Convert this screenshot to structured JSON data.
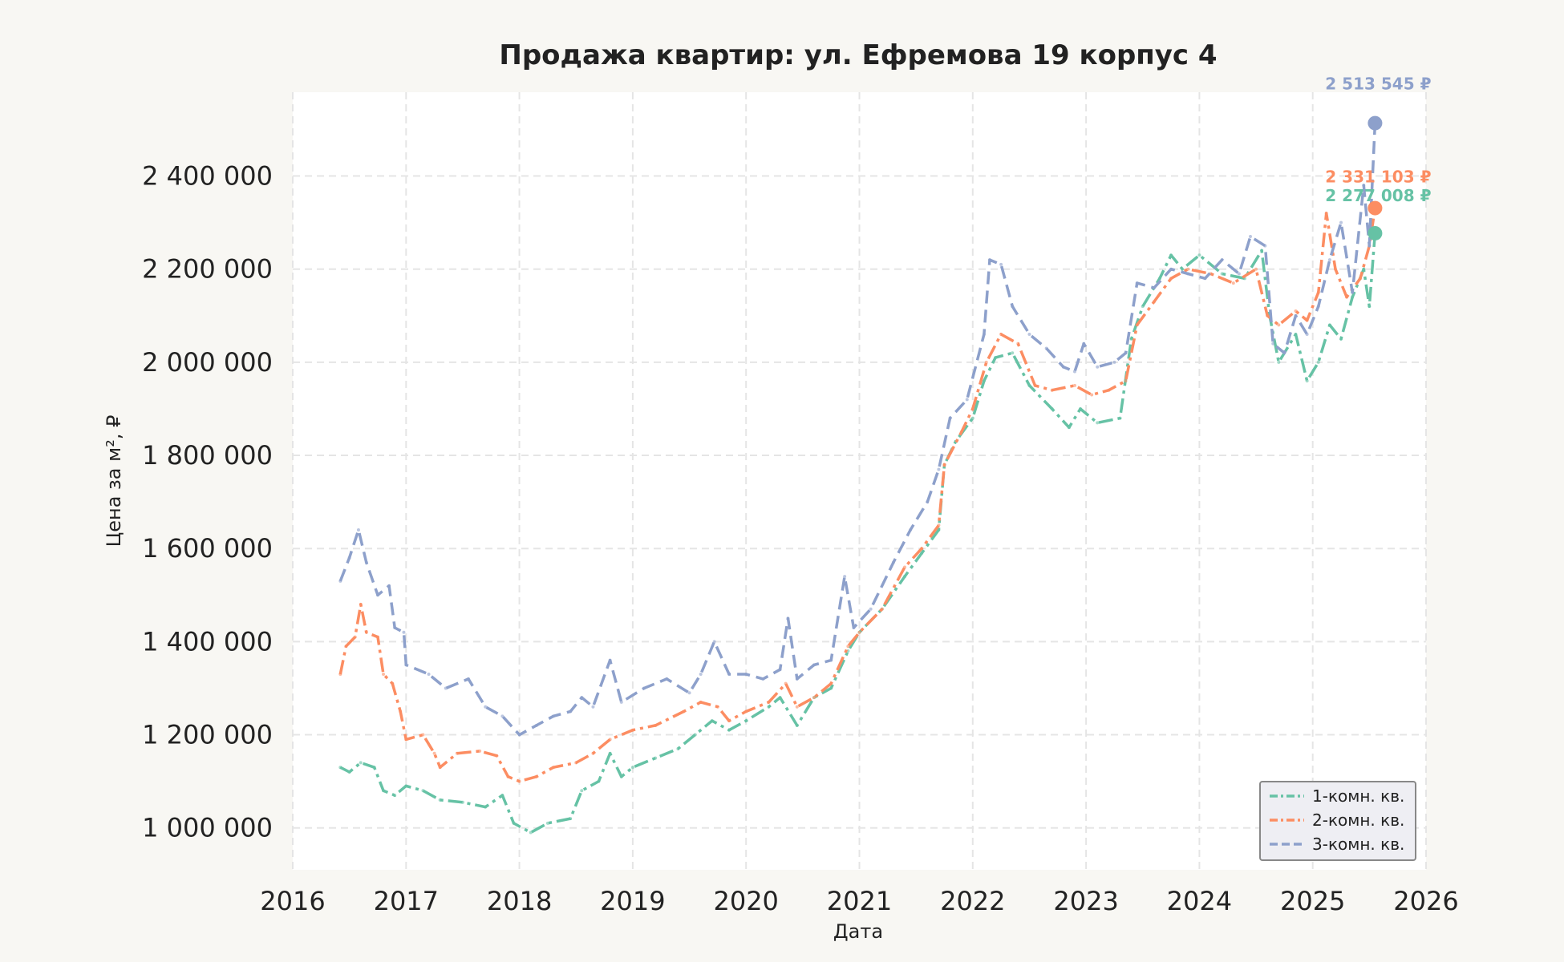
{
  "chart_data": {
    "type": "line",
    "title": "Продажа квартир: ул. Ефремова 19 корпус 4",
    "xlabel": "Дата",
    "ylabel": "Цена за м², ₽",
    "xlim": [
      2016,
      2026
    ],
    "ylim": [
      910000,
      2580000
    ],
    "x_ticks": [
      2016,
      2017,
      2018,
      2019,
      2020,
      2021,
      2022,
      2023,
      2024,
      2025,
      2026
    ],
    "x_tick_labels": [
      "2016",
      "2017",
      "2018",
      "2019",
      "2020",
      "2021",
      "2022",
      "2023",
      "2024",
      "2025",
      "2026"
    ],
    "y_ticks": [
      1000000,
      1200000,
      1400000,
      1600000,
      1800000,
      2000000,
      2200000,
      2400000
    ],
    "y_tick_labels": [
      "1 000 000",
      "1 200 000",
      "1 400 000",
      "1 600 000",
      "1 800 000",
      "2 000 000",
      "2 200 000",
      "2 400 000"
    ],
    "grid": true,
    "legend_position": "bottom-right",
    "series": [
      {
        "name": "1-комн. кв.",
        "color": "#66c2a5",
        "dash": "dashdot",
        "last_label": "2 277 008 ₽",
        "last_point": [
          2025.55,
          2277008
        ],
        "points": [
          [
            2016.42,
            1130000
          ],
          [
            2016.5,
            1120000
          ],
          [
            2016.6,
            1140000
          ],
          [
            2016.72,
            1130000
          ],
          [
            2016.8,
            1080000
          ],
          [
            2016.9,
            1070000
          ],
          [
            2017.0,
            1090000
          ],
          [
            2017.15,
            1080000
          ],
          [
            2017.3,
            1060000
          ],
          [
            2017.5,
            1055000
          ],
          [
            2017.7,
            1045000
          ],
          [
            2017.85,
            1070000
          ],
          [
            2017.95,
            1010000
          ],
          [
            2018.1,
            990000
          ],
          [
            2018.25,
            1010000
          ],
          [
            2018.45,
            1020000
          ],
          [
            2018.55,
            1080000
          ],
          [
            2018.7,
            1100000
          ],
          [
            2018.8,
            1160000
          ],
          [
            2018.9,
            1110000
          ],
          [
            2019.0,
            1130000
          ],
          [
            2019.2,
            1150000
          ],
          [
            2019.4,
            1170000
          ],
          [
            2019.55,
            1200000
          ],
          [
            2019.7,
            1230000
          ],
          [
            2019.85,
            1210000
          ],
          [
            2020.0,
            1230000
          ],
          [
            2020.2,
            1260000
          ],
          [
            2020.3,
            1280000
          ],
          [
            2020.45,
            1220000
          ],
          [
            2020.6,
            1280000
          ],
          [
            2020.75,
            1300000
          ],
          [
            2020.9,
            1380000
          ],
          [
            2021.0,
            1420000
          ],
          [
            2021.2,
            1470000
          ],
          [
            2021.4,
            1540000
          ],
          [
            2021.55,
            1590000
          ],
          [
            2021.7,
            1640000
          ],
          [
            2021.75,
            1780000
          ],
          [
            2021.85,
            1830000
          ],
          [
            2022.0,
            1880000
          ],
          [
            2022.1,
            1960000
          ],
          [
            2022.2,
            2010000
          ],
          [
            2022.35,
            2020000
          ],
          [
            2022.5,
            1950000
          ],
          [
            2022.7,
            1900000
          ],
          [
            2022.85,
            1860000
          ],
          [
            2022.95,
            1900000
          ],
          [
            2023.1,
            1870000
          ],
          [
            2023.3,
            1880000
          ],
          [
            2023.4,
            2050000
          ],
          [
            2023.5,
            2120000
          ],
          [
            2023.65,
            2180000
          ],
          [
            2023.75,
            2230000
          ],
          [
            2023.85,
            2200000
          ],
          [
            2024.0,
            2230000
          ],
          [
            2024.2,
            2190000
          ],
          [
            2024.4,
            2180000
          ],
          [
            2024.55,
            2240000
          ],
          [
            2024.62,
            2100000
          ],
          [
            2024.7,
            2000000
          ],
          [
            2024.85,
            2060000
          ],
          [
            2024.95,
            1960000
          ],
          [
            2025.05,
            2000000
          ],
          [
            2025.15,
            2080000
          ],
          [
            2025.25,
            2050000
          ],
          [
            2025.35,
            2140000
          ],
          [
            2025.45,
            2200000
          ],
          [
            2025.5,
            2120000
          ],
          [
            2025.55,
            2277008
          ]
        ]
      },
      {
        "name": "2-комн. кв.",
        "color": "#fc8d62",
        "dash": "dashdot",
        "last_label": "2 331 103 ₽",
        "last_point": [
          2025.55,
          2331103
        ],
        "points": [
          [
            2016.42,
            1330000
          ],
          [
            2016.47,
            1390000
          ],
          [
            2016.55,
            1410000
          ],
          [
            2016.6,
            1480000
          ],
          [
            2016.65,
            1420000
          ],
          [
            2016.75,
            1410000
          ],
          [
            2016.8,
            1330000
          ],
          [
            2016.88,
            1310000
          ],
          [
            2016.95,
            1250000
          ],
          [
            2017.0,
            1190000
          ],
          [
            2017.15,
            1200000
          ],
          [
            2017.25,
            1160000
          ],
          [
            2017.3,
            1130000
          ],
          [
            2017.45,
            1160000
          ],
          [
            2017.65,
            1165000
          ],
          [
            2017.8,
            1155000
          ],
          [
            2017.9,
            1110000
          ],
          [
            2018.0,
            1100000
          ],
          [
            2018.15,
            1110000
          ],
          [
            2018.3,
            1130000
          ],
          [
            2018.5,
            1140000
          ],
          [
            2018.65,
            1160000
          ],
          [
            2018.8,
            1190000
          ],
          [
            2019.0,
            1210000
          ],
          [
            2019.2,
            1220000
          ],
          [
            2019.45,
            1250000
          ],
          [
            2019.6,
            1270000
          ],
          [
            2019.75,
            1260000
          ],
          [
            2019.85,
            1230000
          ],
          [
            2020.0,
            1250000
          ],
          [
            2020.2,
            1270000
          ],
          [
            2020.35,
            1310000
          ],
          [
            2020.45,
            1260000
          ],
          [
            2020.6,
            1280000
          ],
          [
            2020.75,
            1310000
          ],
          [
            2020.9,
            1390000
          ],
          [
            2021.0,
            1420000
          ],
          [
            2021.2,
            1470000
          ],
          [
            2021.4,
            1560000
          ],
          [
            2021.55,
            1600000
          ],
          [
            2021.7,
            1650000
          ],
          [
            2021.75,
            1780000
          ],
          [
            2021.9,
            1850000
          ],
          [
            2022.0,
            1900000
          ],
          [
            2022.12,
            2000000
          ],
          [
            2022.25,
            2060000
          ],
          [
            2022.4,
            2040000
          ],
          [
            2022.55,
            1950000
          ],
          [
            2022.7,
            1940000
          ],
          [
            2022.9,
            1950000
          ],
          [
            2023.05,
            1930000
          ],
          [
            2023.2,
            1940000
          ],
          [
            2023.35,
            1960000
          ],
          [
            2023.45,
            2080000
          ],
          [
            2023.6,
            2130000
          ],
          [
            2023.75,
            2180000
          ],
          [
            2023.9,
            2200000
          ],
          [
            2024.1,
            2190000
          ],
          [
            2024.3,
            2170000
          ],
          [
            2024.5,
            2200000
          ],
          [
            2024.6,
            2100000
          ],
          [
            2024.7,
            2080000
          ],
          [
            2024.85,
            2110000
          ],
          [
            2024.95,
            2090000
          ],
          [
            2025.05,
            2150000
          ],
          [
            2025.12,
            2320000
          ],
          [
            2025.2,
            2200000
          ],
          [
            2025.3,
            2140000
          ],
          [
            2025.42,
            2180000
          ],
          [
            2025.5,
            2250000
          ],
          [
            2025.55,
            2331103
          ]
        ]
      },
      {
        "name": "3-комн. кв.",
        "color": "#8da0cb",
        "dash": "dashed",
        "last_label": "2 513 545 ₽",
        "last_point": [
          2025.55,
          2513545
        ],
        "points": [
          [
            2016.42,
            1530000
          ],
          [
            2016.5,
            1580000
          ],
          [
            2016.58,
            1640000
          ],
          [
            2016.65,
            1570000
          ],
          [
            2016.75,
            1500000
          ],
          [
            2016.85,
            1520000
          ],
          [
            2016.9,
            1430000
          ],
          [
            2016.98,
            1420000
          ],
          [
            2017.0,
            1350000
          ],
          [
            2017.2,
            1330000
          ],
          [
            2017.35,
            1300000
          ],
          [
            2017.55,
            1320000
          ],
          [
            2017.7,
            1260000
          ],
          [
            2017.85,
            1240000
          ],
          [
            2018.0,
            1200000
          ],
          [
            2018.15,
            1220000
          ],
          [
            2018.3,
            1240000
          ],
          [
            2018.45,
            1250000
          ],
          [
            2018.55,
            1280000
          ],
          [
            2018.65,
            1260000
          ],
          [
            2018.8,
            1360000
          ],
          [
            2018.9,
            1270000
          ],
          [
            2019.1,
            1300000
          ],
          [
            2019.3,
            1320000
          ],
          [
            2019.5,
            1290000
          ],
          [
            2019.6,
            1330000
          ],
          [
            2019.72,
            1400000
          ],
          [
            2019.85,
            1330000
          ],
          [
            2020.0,
            1330000
          ],
          [
            2020.15,
            1320000
          ],
          [
            2020.3,
            1340000
          ],
          [
            2020.37,
            1450000
          ],
          [
            2020.45,
            1320000
          ],
          [
            2020.6,
            1350000
          ],
          [
            2020.75,
            1360000
          ],
          [
            2020.87,
            1540000
          ],
          [
            2020.95,
            1430000
          ],
          [
            2021.1,
            1470000
          ],
          [
            2021.3,
            1570000
          ],
          [
            2021.45,
            1640000
          ],
          [
            2021.6,
            1700000
          ],
          [
            2021.7,
            1770000
          ],
          [
            2021.8,
            1880000
          ],
          [
            2021.95,
            1920000
          ],
          [
            2022.1,
            2060000
          ],
          [
            2022.15,
            2220000
          ],
          [
            2022.25,
            2210000
          ],
          [
            2022.35,
            2120000
          ],
          [
            2022.5,
            2060000
          ],
          [
            2022.65,
            2030000
          ],
          [
            2022.8,
            1990000
          ],
          [
            2022.9,
            1980000
          ],
          [
            2022.98,
            2040000
          ],
          [
            2023.1,
            1990000
          ],
          [
            2023.25,
            2000000
          ],
          [
            2023.35,
            2020000
          ],
          [
            2023.45,
            2170000
          ],
          [
            2023.6,
            2160000
          ],
          [
            2023.75,
            2200000
          ],
          [
            2023.9,
            2190000
          ],
          [
            2024.05,
            2180000
          ],
          [
            2024.2,
            2220000
          ],
          [
            2024.35,
            2190000
          ],
          [
            2024.45,
            2270000
          ],
          [
            2024.58,
            2250000
          ],
          [
            2024.65,
            2040000
          ],
          [
            2024.75,
            2020000
          ],
          [
            2024.85,
            2100000
          ],
          [
            2024.95,
            2060000
          ],
          [
            2025.05,
            2120000
          ],
          [
            2025.15,
            2220000
          ],
          [
            2025.25,
            2300000
          ],
          [
            2025.35,
            2150000
          ],
          [
            2025.45,
            2380000
          ],
          [
            2025.5,
            2250000
          ],
          [
            2025.55,
            2513545
          ]
        ]
      }
    ]
  }
}
